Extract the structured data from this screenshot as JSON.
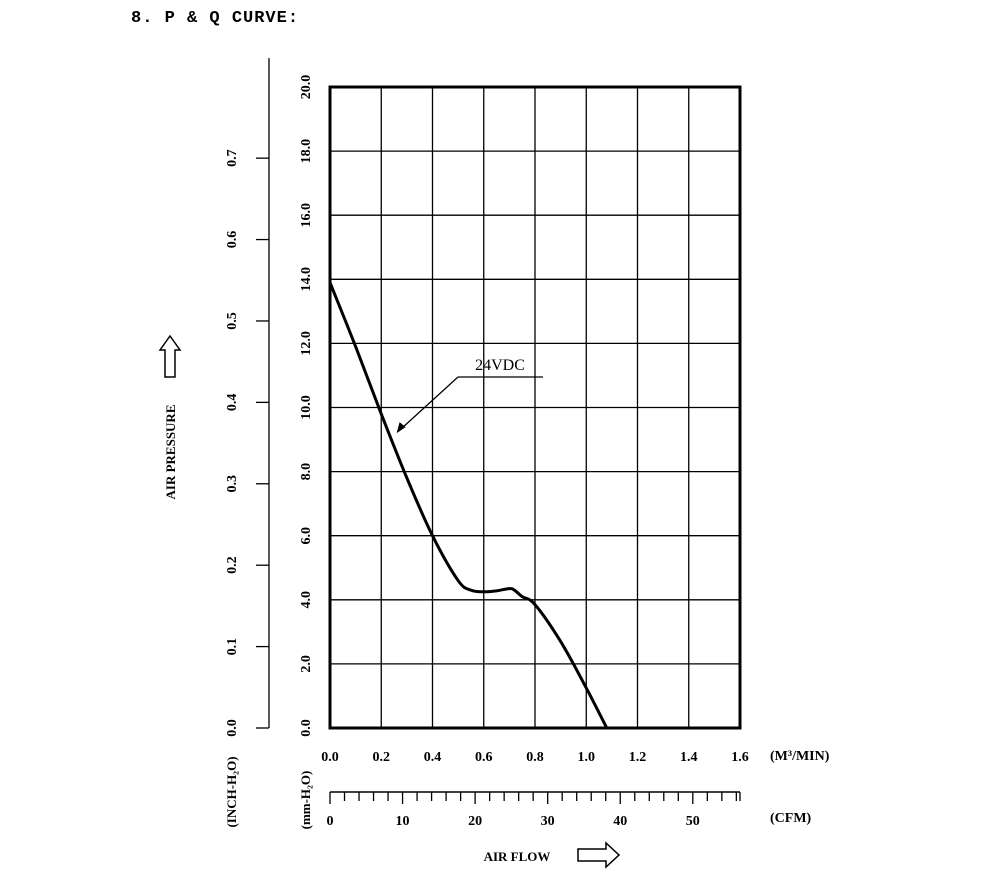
{
  "heading": "8. P & Q CURVE:",
  "chart_data": {
    "type": "line",
    "title": "P & Q CURVE",
    "series": [
      {
        "name": "24VDC",
        "x": [
          0.0,
          0.1,
          0.2,
          0.3,
          0.4,
          0.5,
          0.55,
          0.6,
          0.65,
          0.7,
          0.72,
          0.75,
          0.8,
          0.9,
          1.0,
          1.08
        ],
        "y": [
          13.9,
          11.9,
          9.8,
          7.8,
          6.0,
          4.6,
          4.3,
          4.25,
          4.28,
          4.35,
          4.3,
          4.1,
          3.85,
          2.7,
          1.25,
          0.0
        ]
      }
    ],
    "xlabel": "AIR FLOW",
    "ylabel": "AIR PRESSURE",
    "x_unit": "(M³/MIN)",
    "x2_unit": "(CFM)",
    "y_unit": "(mm-H₂O)",
    "y2_unit": "(INCH-H₂O)",
    "xlim": [
      0.0,
      1.6
    ],
    "ylim": [
      0.0,
      20.0
    ],
    "x_ticks": [
      "0.0",
      "0.2",
      "0.4",
      "0.6",
      "0.8",
      "1.0",
      "1.2",
      "1.4",
      "1.6"
    ],
    "y_ticks": [
      "0.0",
      "2.0",
      "4.0",
      "6.0",
      "8.0",
      "10.0",
      "12.0",
      "14.0",
      "16.0",
      "18.0",
      "20.0"
    ],
    "cfm_ticks": [
      "0",
      "10",
      "20",
      "30",
      "40",
      "50"
    ],
    "inch_ticks": [
      "0.0",
      "0.1",
      "0.2",
      "0.3",
      "0.4",
      "0.5",
      "0.6",
      "0.7"
    ],
    "grid": true,
    "annotation": "24VDC"
  }
}
